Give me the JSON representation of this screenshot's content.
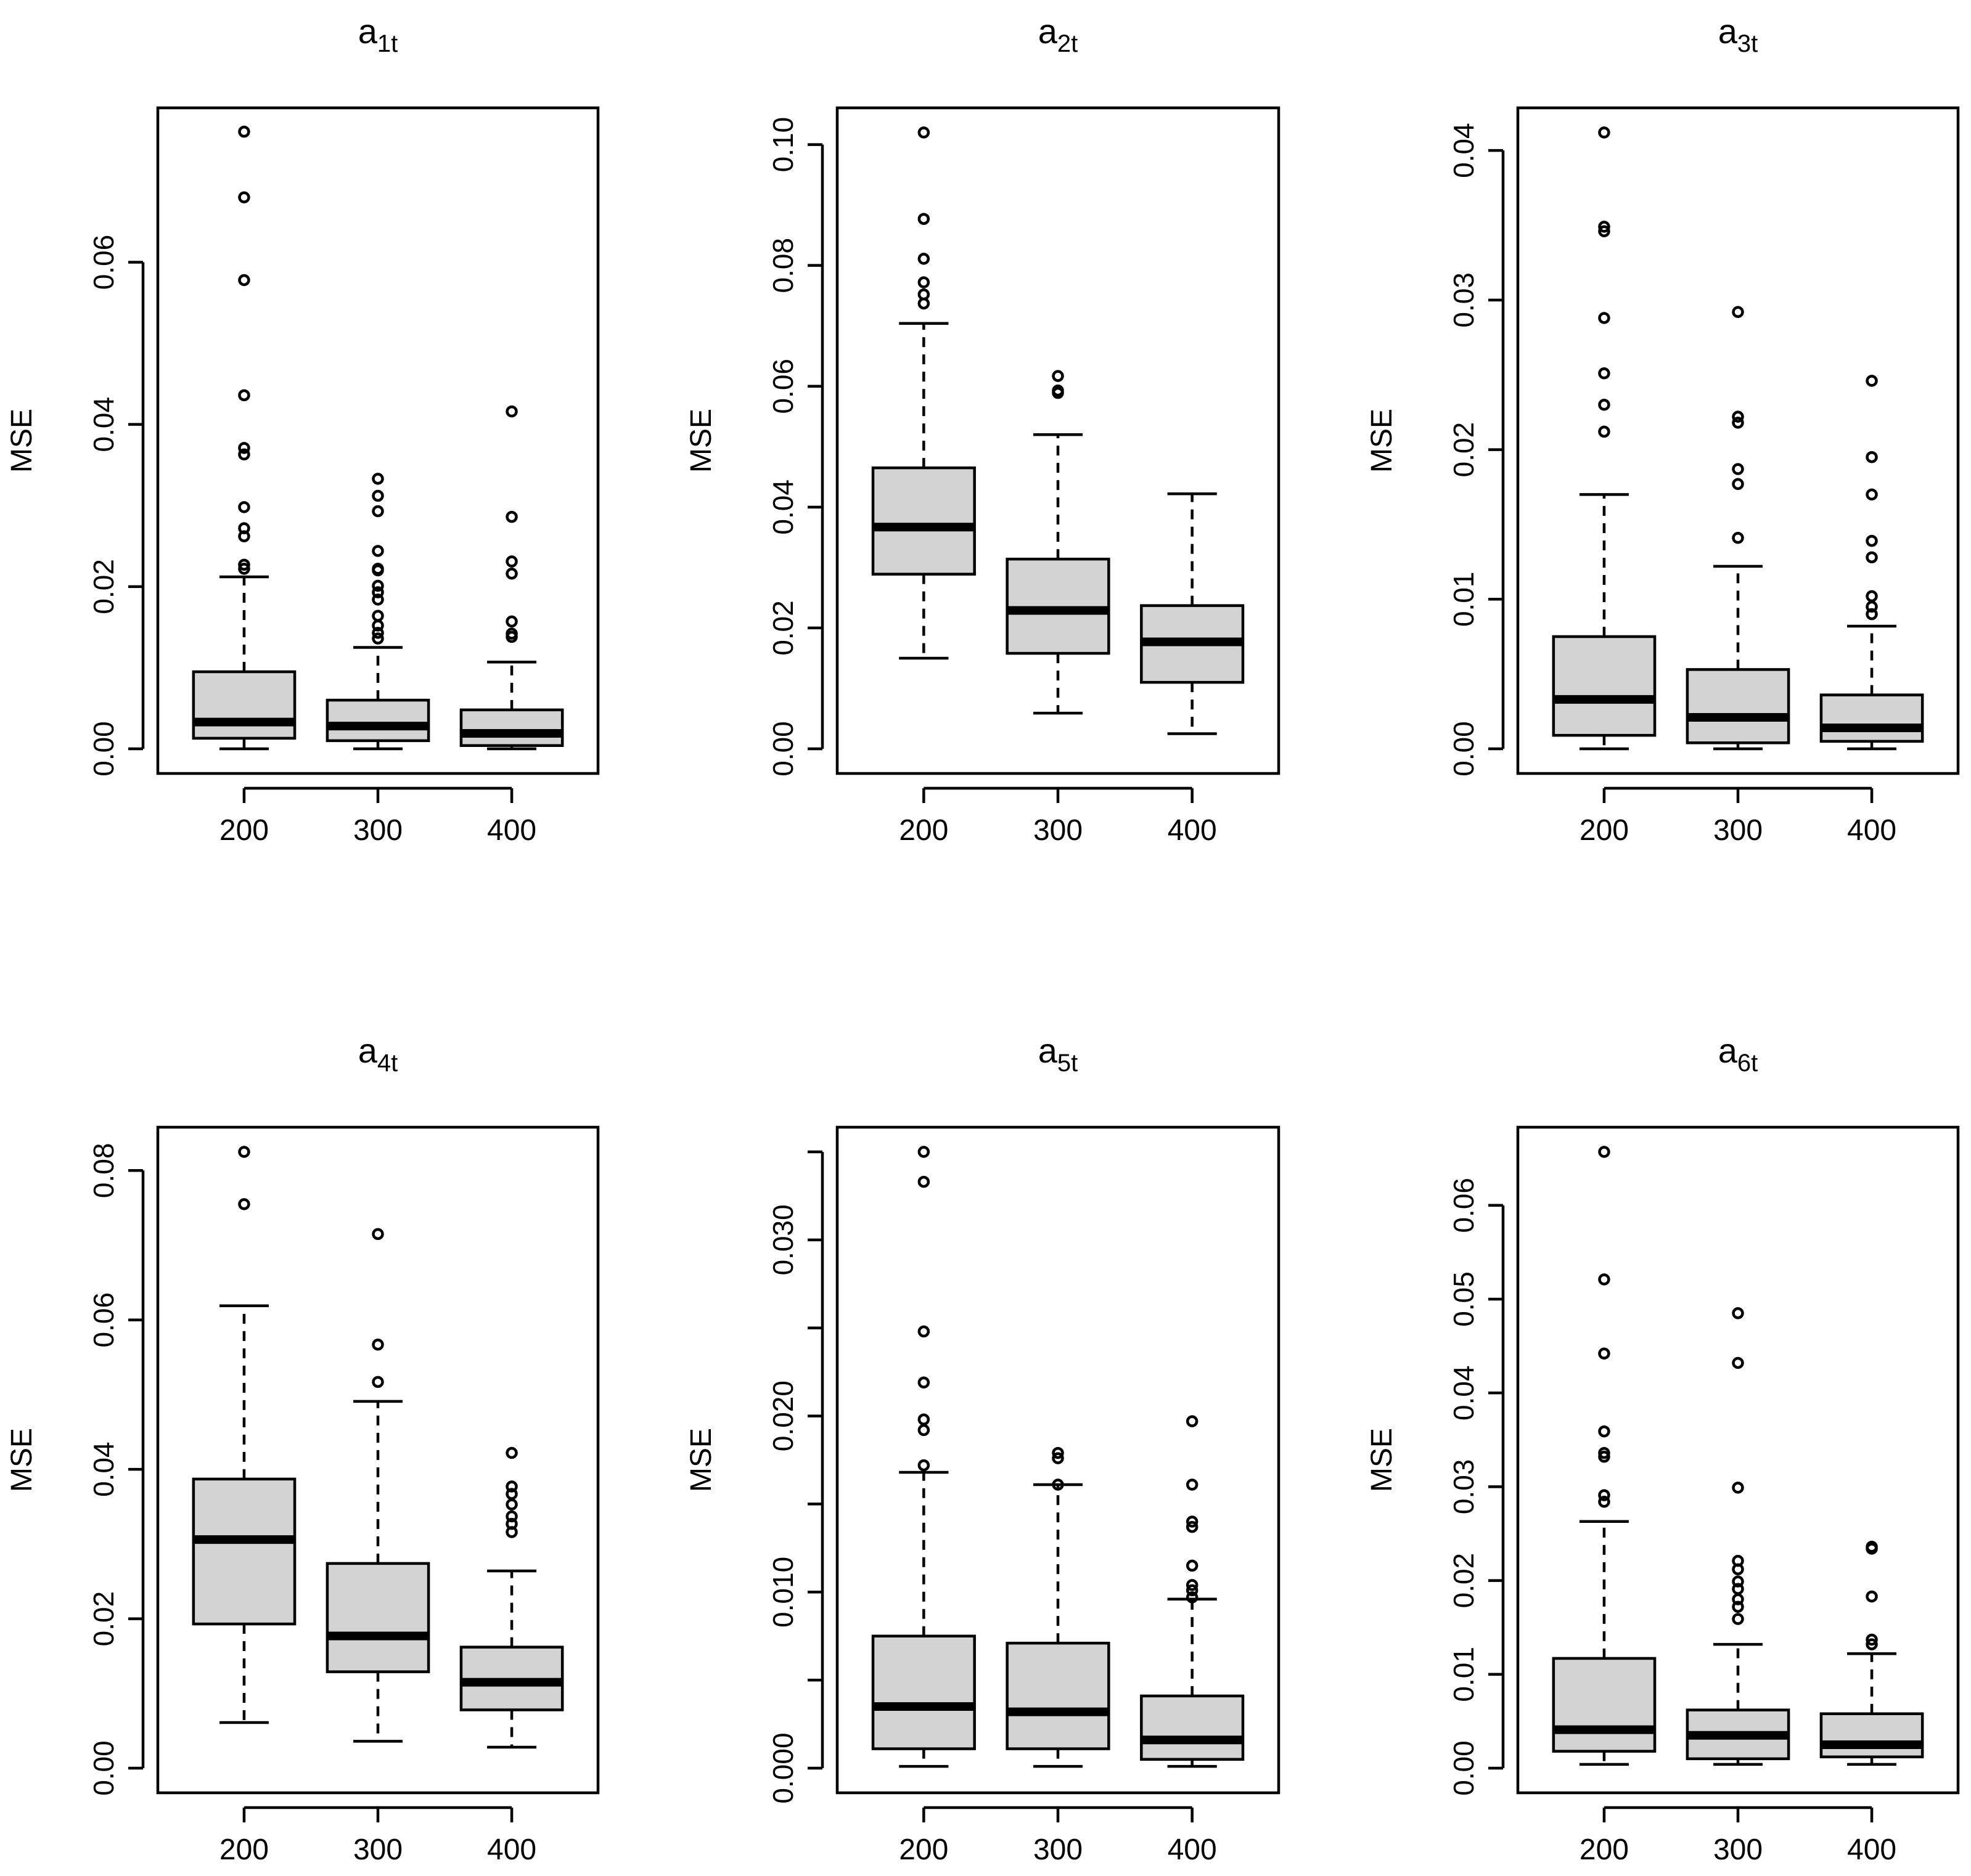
{
  "chart_data": [
    {
      "type": "boxplot",
      "title": "a",
      "title_subscript": "1t",
      "ylabel": "MSE",
      "categories": [
        "200",
        "300",
        "400"
      ],
      "ylim": [
        0,
        0.076
      ],
      "yticks": [
        0.0,
        0.02,
        0.04,
        0.06
      ],
      "ytick_labels": [
        "0.00",
        "0.02",
        "0.04",
        "0.06"
      ],
      "boxes": [
        {
          "category": "200",
          "whisker_low": 0.0,
          "q1": 0.0013,
          "median": 0.0033,
          "q3": 0.0095,
          "whisker_high": 0.0212,
          "outliers": [
            0.0761,
            0.068,
            0.0578,
            0.0436,
            0.0371,
            0.0363,
            0.0298,
            0.0272,
            0.0262,
            0.0227,
            0.0222
          ]
        },
        {
          "category": "300",
          "whisker_low": 0.0,
          "q1": 0.001,
          "median": 0.0028,
          "q3": 0.006,
          "whisker_high": 0.0125,
          "outliers": [
            0.0333,
            0.0312,
            0.0293,
            0.0244,
            0.0222,
            0.022,
            0.0201,
            0.0193,
            0.0184,
            0.0164,
            0.0152,
            0.0143,
            0.0136
          ]
        },
        {
          "category": "400",
          "whisker_low": 0.0,
          "q1": 0.0004,
          "median": 0.0019,
          "q3": 0.0048,
          "whisker_high": 0.0107,
          "outliers": [
            0.0416,
            0.0286,
            0.0231,
            0.0216,
            0.0157,
            0.0142,
            0.0138
          ]
        }
      ]
    },
    {
      "type": "boxplot",
      "title": "a",
      "title_subscript": "2t",
      "ylabel": "MSE",
      "categories": [
        "200",
        "300",
        "400"
      ],
      "ylim": [
        0,
        0.102
      ],
      "yticks": [
        0.0,
        0.02,
        0.04,
        0.06,
        0.08,
        0.1
      ],
      "ytick_labels": [
        "0.00",
        "0.02",
        "0.04",
        "0.06",
        "0.08",
        "0.10"
      ],
      "boxes": [
        {
          "category": "200",
          "whisker_low": 0.015,
          "q1": 0.0289,
          "median": 0.0367,
          "q3": 0.0465,
          "whisker_high": 0.0704,
          "outliers": [
            0.102,
            0.0877,
            0.0811,
            0.0772,
            0.0752,
            0.0737
          ]
        },
        {
          "category": "300",
          "whisker_low": 0.0059,
          "q1": 0.0158,
          "median": 0.0229,
          "q3": 0.0314,
          "whisker_high": 0.052,
          "outliers": [
            0.0617,
            0.0593,
            0.0589
          ]
        },
        {
          "category": "400",
          "whisker_low": 0.0025,
          "q1": 0.011,
          "median": 0.0177,
          "q3": 0.0237,
          "whisker_high": 0.0422,
          "outliers": []
        }
      ]
    },
    {
      "type": "boxplot",
      "title": "a",
      "title_subscript": "3t",
      "ylabel": "MSE",
      "categories": [
        "200",
        "300",
        "400"
      ],
      "ylim": [
        0,
        0.0412
      ],
      "yticks": [
        0.0,
        0.01,
        0.02,
        0.03,
        0.04
      ],
      "ytick_labels": [
        "0.00",
        "0.01",
        "0.02",
        "0.03",
        "0.04"
      ],
      "boxes": [
        {
          "category": "200",
          "whisker_low": 0.0,
          "q1": 0.0009,
          "median": 0.0033,
          "q3": 0.0075,
          "whisker_high": 0.017,
          "outliers": [
            0.0412,
            0.0349,
            0.0346,
            0.0288,
            0.0251,
            0.023,
            0.0212
          ]
        },
        {
          "category": "300",
          "whisker_low": 0.0,
          "q1": 0.0004,
          "median": 0.0021,
          "q3": 0.0053,
          "whisker_high": 0.0122,
          "outliers": [
            0.0292,
            0.0222,
            0.0218,
            0.0187,
            0.0177,
            0.0141
          ]
        },
        {
          "category": "400",
          "whisker_low": 0.0,
          "q1": 0.0005,
          "median": 0.0014,
          "q3": 0.0036,
          "whisker_high": 0.0082,
          "outliers": [
            0.0246,
            0.0195,
            0.017,
            0.0139,
            0.0128,
            0.0102,
            0.0095,
            0.009
          ]
        }
      ]
    },
    {
      "type": "boxplot",
      "title": "a",
      "title_subscript": "4t",
      "ylabel": "MSE",
      "categories": [
        "200",
        "300",
        "400"
      ],
      "ylim": [
        0,
        0.0825
      ],
      "yticks": [
        0.0,
        0.02,
        0.04,
        0.06,
        0.08
      ],
      "ytick_labels": [
        "0.00",
        "0.02",
        "0.04",
        "0.06",
        "0.08"
      ],
      "boxes": [
        {
          "category": "200",
          "whisker_low": 0.0061,
          "q1": 0.0193,
          "median": 0.0306,
          "q3": 0.0387,
          "whisker_high": 0.0619,
          "outliers": [
            0.0825,
            0.0755
          ]
        },
        {
          "category": "300",
          "whisker_low": 0.0036,
          "q1": 0.0129,
          "median": 0.0177,
          "q3": 0.0274,
          "whisker_high": 0.0491,
          "outliers": [
            0.0715,
            0.0567,
            0.0517
          ]
        },
        {
          "category": "400",
          "whisker_low": 0.0028,
          "q1": 0.0078,
          "median": 0.0115,
          "q3": 0.0162,
          "whisker_high": 0.0264,
          "outliers": [
            0.0422,
            0.0377,
            0.0367,
            0.0353,
            0.0337,
            0.0327,
            0.0316
          ]
        }
      ]
    },
    {
      "type": "boxplot",
      "title": "a",
      "title_subscript": "5t",
      "ylabel": "MSE",
      "categories": [
        "200",
        "300",
        "400"
      ],
      "ylim": [
        0,
        0.035
      ],
      "yticks": [
        0.0,
        0.005,
        0.01,
        0.015,
        0.02,
        0.025,
        0.03,
        0.035
      ],
      "ytick_labels": [
        "0.000",
        "",
        "0.010",
        "",
        "0.020",
        "",
        "0.030",
        ""
      ],
      "boxes": [
        {
          "category": "200",
          "whisker_low": 0.0001,
          "q1": 0.0011,
          "median": 0.0035,
          "q3": 0.0075,
          "whisker_high": 0.0168,
          "outliers": [
            0.035,
            0.0333,
            0.0248,
            0.0219,
            0.0198,
            0.0192,
            0.0172
          ]
        },
        {
          "category": "300",
          "whisker_low": 0.0001,
          "q1": 0.0011,
          "median": 0.0032,
          "q3": 0.0071,
          "whisker_high": 0.0161,
          "outliers": [
            0.0179,
            0.0176,
            0.0161
          ]
        },
        {
          "category": "400",
          "whisker_low": 0.0001,
          "q1": 0.0005,
          "median": 0.0016,
          "q3": 0.0041,
          "whisker_high": 0.0096,
          "outliers": [
            0.0197,
            0.0161,
            0.014,
            0.0137,
            0.0115,
            0.0104,
            0.0101,
            0.0097
          ]
        }
      ]
    },
    {
      "type": "boxplot",
      "title": "a",
      "title_subscript": "6t",
      "ylabel": "MSE",
      "categories": [
        "200",
        "300",
        "400"
      ],
      "ylim": [
        0,
        0.0657
      ],
      "yticks": [
        0.0,
        0.01,
        0.02,
        0.03,
        0.04,
        0.05,
        0.06
      ],
      "ytick_labels": [
        "0.00",
        "0.01",
        "0.02",
        "0.03",
        "0.04",
        "0.05",
        "0.06"
      ],
      "boxes": [
        {
          "category": "200",
          "whisker_low": 0.0004,
          "q1": 0.0018,
          "median": 0.0041,
          "q3": 0.0117,
          "whisker_high": 0.0263,
          "outliers": [
            0.0657,
            0.0521,
            0.0442,
            0.0359,
            0.0336,
            0.0332,
            0.0291,
            0.0284
          ]
        },
        {
          "category": "300",
          "whisker_low": 0.0004,
          "q1": 0.001,
          "median": 0.0035,
          "q3": 0.0062,
          "whisker_high": 0.0132,
          "outliers": [
            0.0485,
            0.0432,
            0.0299,
            0.0221,
            0.0212,
            0.0199,
            0.0191,
            0.018,
            0.0172,
            0.0159
          ]
        },
        {
          "category": "400",
          "whisker_low": 0.0004,
          "q1": 0.0012,
          "median": 0.0025,
          "q3": 0.0058,
          "whisker_high": 0.0122,
          "outliers": [
            0.0236,
            0.0234,
            0.0183,
            0.0137,
            0.0132
          ]
        }
      ]
    }
  ]
}
